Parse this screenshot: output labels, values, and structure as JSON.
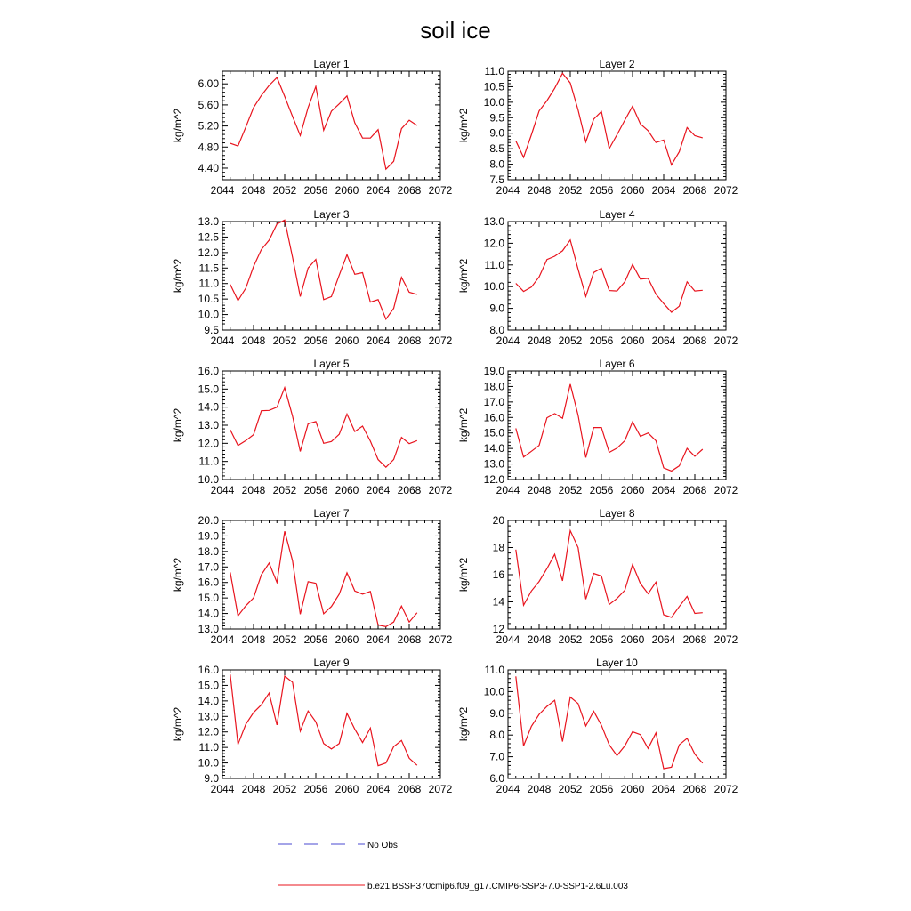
{
  "figure": {
    "title": "soil ice",
    "legend": {
      "obs_label": "No Obs",
      "model_label": "b.e21.BSSP370cmip6.f09_g17.CMIP6-SSP3-7.0-SSP1-2.6Lu.003",
      "obs_color": "#4a4ad0",
      "model_color": "#e8141e"
    }
  },
  "chart_data": [
    {
      "type": "line",
      "title": "Layer 1",
      "xlabel": "",
      "ylabel": "kg/m^2",
      "xlim": [
        2044,
        2072
      ],
      "ylim": [
        4.18,
        6.24
      ],
      "xticks": [
        2044,
        2048,
        2052,
        2056,
        2060,
        2064,
        2068,
        2072
      ],
      "yticks": [
        4.4,
        4.8,
        5.2,
        5.6,
        6.0
      ],
      "ytick_decimals": 2,
      "x": [
        2045,
        2046,
        2047,
        2048,
        2049,
        2050,
        2051,
        2052,
        2053,
        2054,
        2055,
        2056,
        2057,
        2058,
        2059,
        2060,
        2061,
        2062,
        2063,
        2064,
        2065,
        2066,
        2067,
        2068,
        2069
      ],
      "values": [
        4.87,
        4.82,
        5.18,
        5.55,
        5.78,
        5.97,
        6.12,
        5.76,
        5.38,
        5.02,
        5.55,
        5.95,
        5.12,
        5.48,
        5.62,
        5.77,
        5.26,
        4.97,
        4.97,
        5.13,
        4.38,
        4.53,
        5.15,
        5.31,
        5.21
      ]
    },
    {
      "type": "line",
      "title": "Layer 2",
      "xlabel": "",
      "ylabel": "kg/m^2",
      "xlim": [
        2044,
        2072
      ],
      "ylim": [
        7.5,
        11.0
      ],
      "xticks": [
        2044,
        2048,
        2052,
        2056,
        2060,
        2064,
        2068,
        2072
      ],
      "yticks": [
        7.5,
        8.0,
        8.5,
        9.0,
        9.5,
        10.0,
        10.5,
        11.0
      ],
      "ytick_decimals": 1,
      "x": [
        2045,
        2046,
        2047,
        2048,
        2049,
        2050,
        2051,
        2052,
        2053,
        2054,
        2055,
        2056,
        2057,
        2058,
        2059,
        2060,
        2061,
        2062,
        2063,
        2064,
        2065,
        2066,
        2067,
        2068,
        2069
      ],
      "values": [
        8.75,
        8.22,
        8.95,
        9.72,
        10.05,
        10.45,
        10.93,
        10.62,
        9.75,
        8.72,
        9.45,
        9.7,
        8.5,
        8.95,
        9.42,
        9.87,
        9.3,
        9.08,
        8.7,
        8.78,
        7.98,
        8.4,
        9.18,
        8.92,
        8.85
      ]
    },
    {
      "type": "line",
      "title": "Layer 3",
      "xlabel": "",
      "ylabel": "kg/m^2",
      "xlim": [
        2044,
        2072
      ],
      "ylim": [
        9.5,
        13.0
      ],
      "xticks": [
        2044,
        2048,
        2052,
        2056,
        2060,
        2064,
        2068,
        2072
      ],
      "yticks": [
        9.5,
        10.0,
        10.5,
        11.0,
        11.5,
        12.0,
        12.5,
        13.0
      ],
      "ytick_decimals": 1,
      "x": [
        2045,
        2046,
        2047,
        2048,
        2049,
        2050,
        2051,
        2052,
        2053,
        2054,
        2055,
        2056,
        2057,
        2058,
        2059,
        2060,
        2061,
        2062,
        2063,
        2064,
        2065,
        2066,
        2067,
        2068,
        2069
      ],
      "values": [
        10.97,
        10.45,
        10.85,
        11.55,
        12.1,
        12.4,
        12.92,
        13.05,
        11.85,
        10.58,
        11.5,
        11.78,
        10.48,
        10.58,
        11.27,
        11.93,
        11.3,
        11.35,
        10.4,
        10.48,
        9.85,
        10.2,
        11.2,
        10.72,
        10.65
      ]
    },
    {
      "type": "line",
      "title": "Layer 4",
      "xlabel": "",
      "ylabel": "kg/m^2",
      "xlim": [
        2044,
        2072
      ],
      "ylim": [
        8.0,
        13.0
      ],
      "xticks": [
        2044,
        2048,
        2052,
        2056,
        2060,
        2064,
        2068,
        2072
      ],
      "yticks": [
        8.0,
        9.0,
        10.0,
        11.0,
        12.0,
        13.0
      ],
      "ytick_decimals": 1,
      "x": [
        2045,
        2046,
        2047,
        2048,
        2049,
        2050,
        2051,
        2052,
        2053,
        2054,
        2055,
        2056,
        2057,
        2058,
        2059,
        2060,
        2061,
        2062,
        2063,
        2064,
        2065,
        2066,
        2067,
        2068,
        2069
      ],
      "values": [
        10.15,
        9.78,
        9.98,
        10.45,
        11.25,
        11.4,
        11.65,
        12.15,
        10.8,
        9.55,
        10.65,
        10.85,
        9.82,
        9.8,
        10.22,
        11.02,
        10.35,
        10.38,
        9.65,
        9.22,
        8.82,
        9.1,
        10.22,
        9.8,
        9.83
      ]
    },
    {
      "type": "line",
      "title": "Layer 5",
      "xlabel": "",
      "ylabel": "kg/m^2",
      "xlim": [
        2044,
        2072
      ],
      "ylim": [
        10.0,
        16.0
      ],
      "xticks": [
        2044,
        2048,
        2052,
        2056,
        2060,
        2064,
        2068,
        2072
      ],
      "yticks": [
        10.0,
        11.0,
        12.0,
        13.0,
        14.0,
        15.0,
        16.0
      ],
      "ytick_decimals": 1,
      "x": [
        2045,
        2046,
        2047,
        2048,
        2049,
        2050,
        2051,
        2052,
        2053,
        2054,
        2055,
        2056,
        2057,
        2058,
        2059,
        2060,
        2061,
        2062,
        2063,
        2064,
        2065,
        2066,
        2067,
        2068,
        2069
      ],
      "values": [
        12.75,
        11.88,
        12.15,
        12.48,
        13.8,
        13.82,
        14.0,
        15.08,
        13.5,
        11.55,
        13.08,
        13.2,
        12.0,
        12.1,
        12.5,
        13.62,
        12.65,
        12.95,
        12.12,
        11.1,
        10.68,
        11.1,
        12.33,
        11.98,
        12.15
      ]
    },
    {
      "type": "line",
      "title": "Layer 6",
      "xlabel": "",
      "ylabel": "kg/m^2",
      "xlim": [
        2044,
        2072
      ],
      "ylim": [
        12.0,
        19.0
      ],
      "xticks": [
        2044,
        2048,
        2052,
        2056,
        2060,
        2064,
        2068,
        2072
      ],
      "yticks": [
        12.0,
        13.0,
        14.0,
        15.0,
        16.0,
        17.0,
        18.0,
        19.0
      ],
      "ytick_decimals": 1,
      "x": [
        2045,
        2046,
        2047,
        2048,
        2049,
        2050,
        2051,
        2052,
        2053,
        2054,
        2055,
        2056,
        2057,
        2058,
        2059,
        2060,
        2061,
        2062,
        2063,
        2064,
        2065,
        2066,
        2067,
        2068,
        2069
      ],
      "values": [
        15.3,
        13.45,
        13.82,
        14.2,
        15.98,
        16.25,
        15.95,
        18.15,
        16.15,
        13.42,
        15.35,
        15.35,
        13.75,
        14.02,
        14.5,
        15.72,
        14.78,
        15.0,
        14.5,
        12.75,
        12.55,
        12.88,
        14.0,
        13.5,
        13.95
      ]
    },
    {
      "type": "line",
      "title": "Layer 7",
      "xlabel": "",
      "ylabel": "kg/m^2",
      "xlim": [
        2044,
        2072
      ],
      "ylim": [
        13.0,
        20.0
      ],
      "xticks": [
        2044,
        2048,
        2052,
        2056,
        2060,
        2064,
        2068,
        2072
      ],
      "yticks": [
        13.0,
        14.0,
        15.0,
        16.0,
        17.0,
        18.0,
        19.0,
        20.0
      ],
      "ytick_decimals": 1,
      "x": [
        2045,
        2046,
        2047,
        2048,
        2049,
        2050,
        2051,
        2052,
        2053,
        2054,
        2055,
        2056,
        2057,
        2058,
        2059,
        2060,
        2061,
        2062,
        2063,
        2064,
        2065,
        2066,
        2067,
        2068,
        2069
      ],
      "values": [
        16.65,
        13.85,
        14.5,
        15.0,
        16.5,
        17.25,
        16.0,
        19.3,
        17.4,
        13.95,
        16.05,
        15.95,
        13.98,
        14.45,
        15.25,
        16.62,
        15.45,
        15.25,
        15.42,
        13.25,
        13.15,
        13.45,
        14.48,
        13.45,
        14.05
      ]
    },
    {
      "type": "line",
      "title": "Layer 8",
      "xlabel": "",
      "ylabel": "kg/m^2",
      "xlim": [
        2044,
        2072
      ],
      "ylim": [
        12,
        20
      ],
      "xticks": [
        2044,
        2048,
        2052,
        2056,
        2060,
        2064,
        2068,
        2072
      ],
      "yticks": [
        12,
        14,
        16,
        18,
        20
      ],
      "ytick_decimals": 0,
      "x": [
        2045,
        2046,
        2047,
        2048,
        2049,
        2050,
        2051,
        2052,
        2053,
        2054,
        2055,
        2056,
        2057,
        2058,
        2059,
        2060,
        2061,
        2062,
        2063,
        2064,
        2065,
        2066,
        2067,
        2068,
        2069
      ],
      "values": [
        17.85,
        13.75,
        14.8,
        15.5,
        16.45,
        17.5,
        15.55,
        19.25,
        18.0,
        14.2,
        16.1,
        15.9,
        13.8,
        14.25,
        14.85,
        16.75,
        15.35,
        14.6,
        15.45,
        13.05,
        12.85,
        13.65,
        14.4,
        13.15,
        13.2
      ]
    },
    {
      "type": "line",
      "title": "Layer 9",
      "xlabel": "",
      "ylabel": "kg/m^2",
      "xlim": [
        2044,
        2072
      ],
      "ylim": [
        9.0,
        16.0
      ],
      "xticks": [
        2044,
        2048,
        2052,
        2056,
        2060,
        2064,
        2068,
        2072
      ],
      "yticks": [
        9.0,
        10.0,
        11.0,
        12.0,
        13.0,
        14.0,
        15.0,
        16.0
      ],
      "ytick_decimals": 1,
      "x": [
        2045,
        2046,
        2047,
        2048,
        2049,
        2050,
        2051,
        2052,
        2053,
        2054,
        2055,
        2056,
        2057,
        2058,
        2059,
        2060,
        2061,
        2062,
        2063,
        2064,
        2065,
        2066,
        2067,
        2068,
        2069
      ],
      "values": [
        15.7,
        11.2,
        12.5,
        13.25,
        13.75,
        14.5,
        12.45,
        15.6,
        15.2,
        12.05,
        13.35,
        12.65,
        11.25,
        10.9,
        11.25,
        13.2,
        12.18,
        11.32,
        12.25,
        9.82,
        10.0,
        11.05,
        11.45,
        10.3,
        9.85
      ]
    },
    {
      "type": "line",
      "title": "Layer 10",
      "xlabel": "",
      "ylabel": "kg/m^2",
      "xlim": [
        2044,
        2072
      ],
      "ylim": [
        6.0,
        11.0
      ],
      "xticks": [
        2044,
        2048,
        2052,
        2056,
        2060,
        2064,
        2068,
        2072
      ],
      "yticks": [
        6.0,
        7.0,
        8.0,
        9.0,
        10.0,
        11.0
      ],
      "ytick_decimals": 1,
      "x": [
        2045,
        2046,
        2047,
        2048,
        2049,
        2050,
        2051,
        2052,
        2053,
        2054,
        2055,
        2056,
        2057,
        2058,
        2059,
        2060,
        2061,
        2062,
        2063,
        2064,
        2065,
        2066,
        2067,
        2068,
        2069
      ],
      "values": [
        10.7,
        7.5,
        8.4,
        8.95,
        9.32,
        9.6,
        7.7,
        9.75,
        9.45,
        8.42,
        9.1,
        8.45,
        7.55,
        7.05,
        7.5,
        8.15,
        8.02,
        7.38,
        8.1,
        6.45,
        6.52,
        7.55,
        7.85,
        7.12,
        6.7
      ]
    }
  ]
}
